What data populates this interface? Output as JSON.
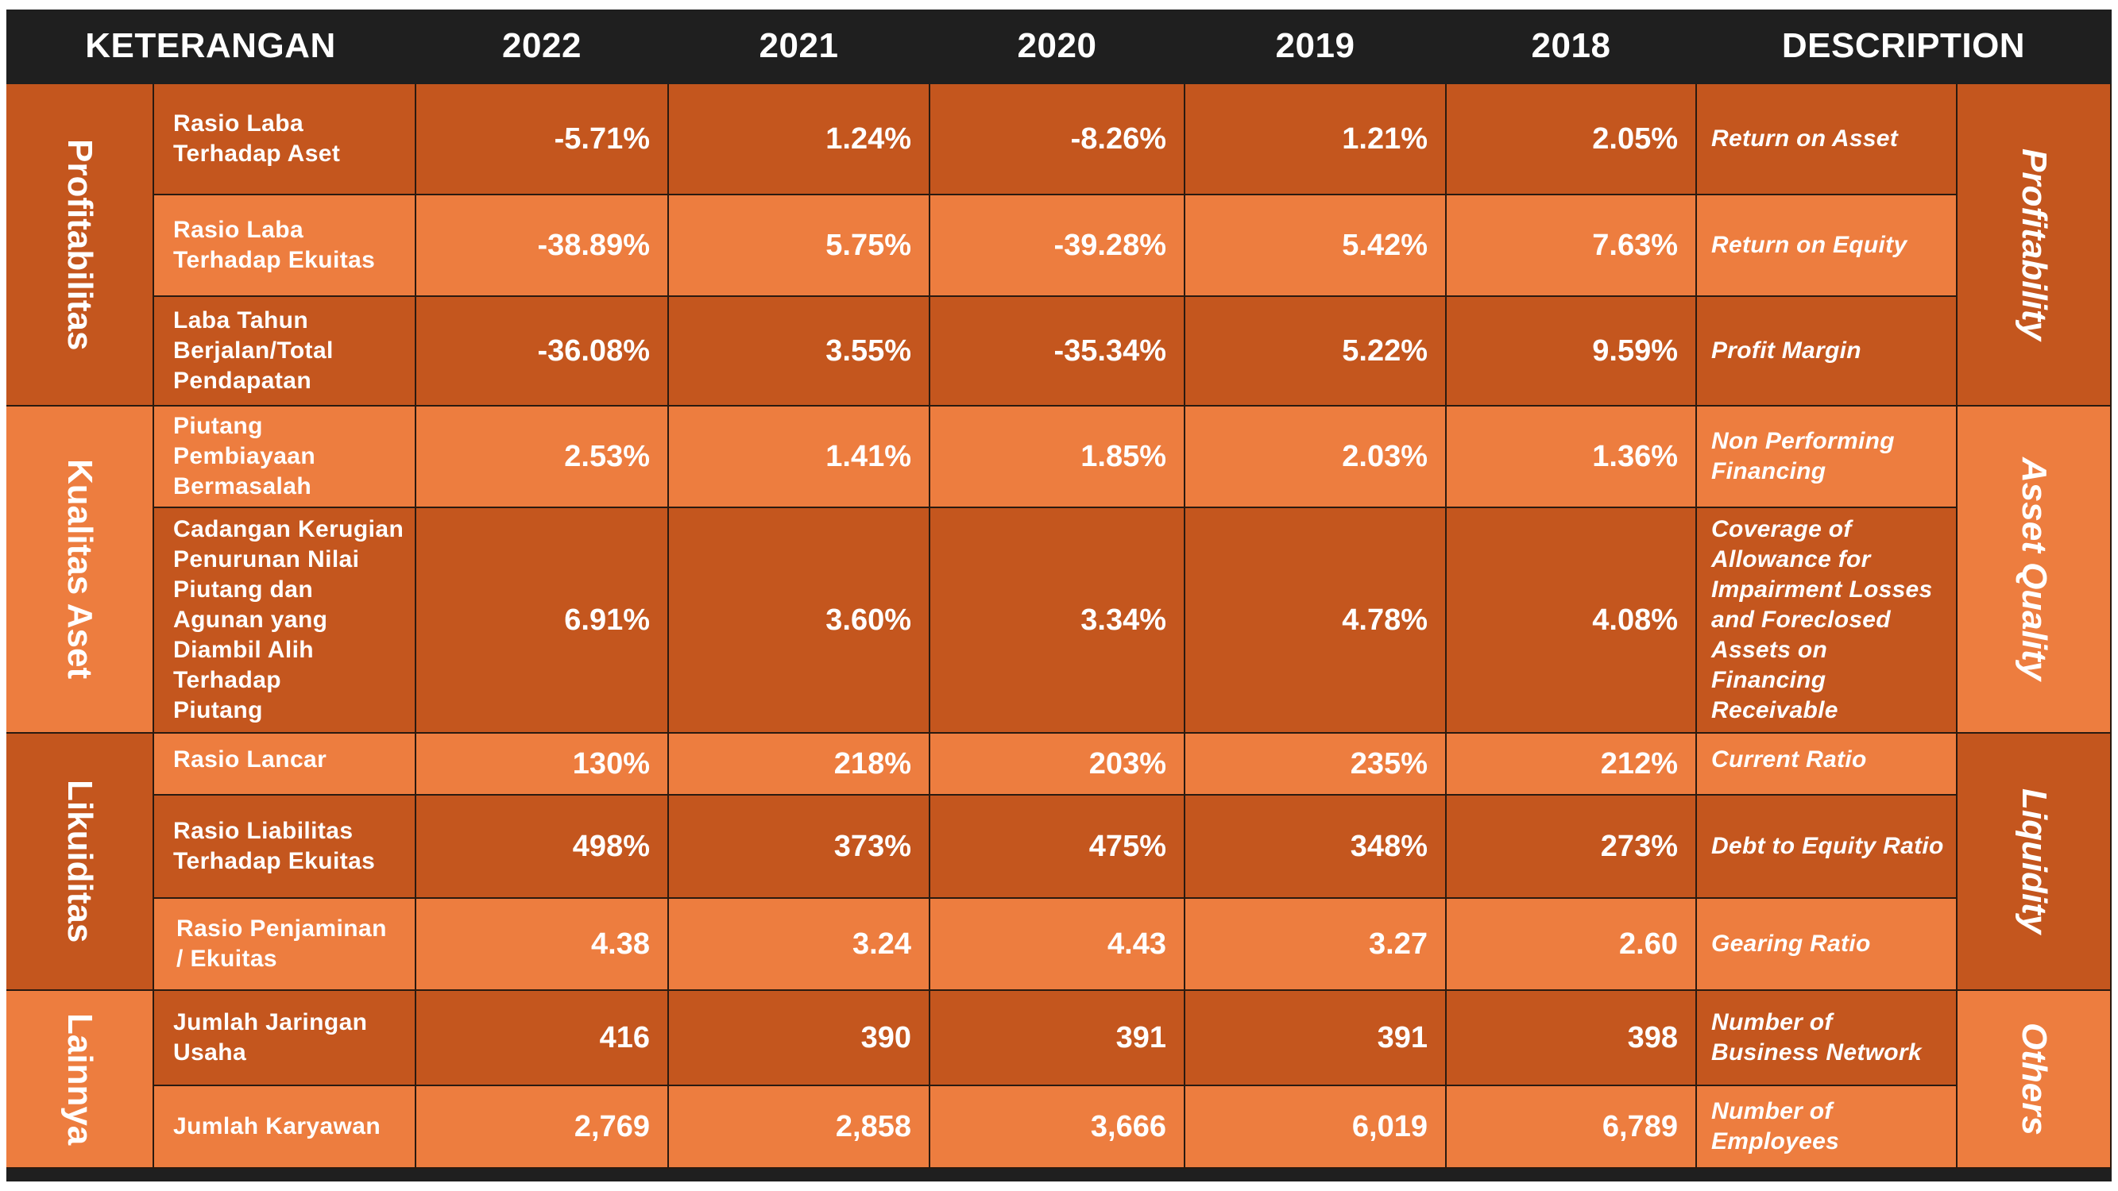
{
  "header": {
    "keterangan": "KETERANGAN",
    "years": [
      "2022",
      "2021",
      "2020",
      "2019",
      "2018"
    ],
    "description": "DESCRIPTION"
  },
  "groups": [
    {
      "id_label": "Profitabilitas",
      "en_label": "Profitability"
    },
    {
      "id_label": "Kualitas Aset",
      "en_label": "Asset Quality"
    },
    {
      "id_label": "Likuiditas",
      "en_label": "Liquidity"
    },
    {
      "id_label": "Lainnya",
      "en_label": "Others"
    }
  ],
  "rows": [
    {
      "label": "Rasio Laba\nTerhadap Aset",
      "values": [
        "-5.71%",
        "1.24%",
        "-8.26%",
        "1.21%",
        "2.05%"
      ],
      "en": "Return on Asset"
    },
    {
      "label": "Rasio Laba\nTerhadap Ekuitas",
      "values": [
        "-38.89%",
        "5.75%",
        "-39.28%",
        "5.42%",
        "7.63%"
      ],
      "en": "Return on Equity"
    },
    {
      "label": "Laba Tahun\nBerjalan/Total\nPendapatan",
      "values": [
        "-36.08%",
        "3.55%",
        "-35.34%",
        "5.22%",
        "9.59%"
      ],
      "en": "Profit Margin"
    },
    {
      "label": "Piutang\nPembiayaan\nBermasalah",
      "values": [
        "2.53%",
        "1.41%",
        "1.85%",
        "2.03%",
        "1.36%"
      ],
      "en": "Non Performing\nFinancing"
    },
    {
      "label": "Cadangan Kerugian\nPenurunan Nilai\nPiutang dan\nAgunan yang\nDiambil Alih\nTerhadap\nPiutang",
      "values": [
        "6.91%",
        "3.60%",
        "3.34%",
        "4.78%",
        "4.08%"
      ],
      "en": "Coverage of\nAllowance for\nImpairment Losses\nand Foreclosed\nAssets on\nFinancing\nReceivable"
    },
    {
      "label": "Rasio Lancar",
      "values": [
        "130%",
        "218%",
        "203%",
        "235%",
        "212%"
      ],
      "en": "Current Ratio"
    },
    {
      "label": "Rasio Liabilitas\nTerhadap Ekuitas",
      "values": [
        "498%",
        "373%",
        "475%",
        "348%",
        "273%"
      ],
      "en": "Debt to Equity Ratio"
    },
    {
      "label": "Rasio Penjaminan\n/ Ekuitas",
      "values": [
        "4.38",
        "3.24",
        "4.43",
        "3.27",
        "2.60"
      ],
      "en": "Gearing Ratio"
    },
    {
      "label": "Jumlah Jaringan\nUsaha",
      "values": [
        "416",
        "390",
        "391",
        "391",
        "398"
      ],
      "en": "Number of\nBusiness Network"
    },
    {
      "label": "Jumlah Karyawan",
      "values": [
        "2,769",
        "2,858",
        "3,666",
        "6,019",
        "6,789"
      ],
      "en": "Number of\nEmployees"
    }
  ],
  "colors": {
    "header_bg": "#1f1f1f",
    "dark_orange": "#c4561e",
    "light_orange": "#ed7d3f",
    "text": "#ffffff"
  }
}
